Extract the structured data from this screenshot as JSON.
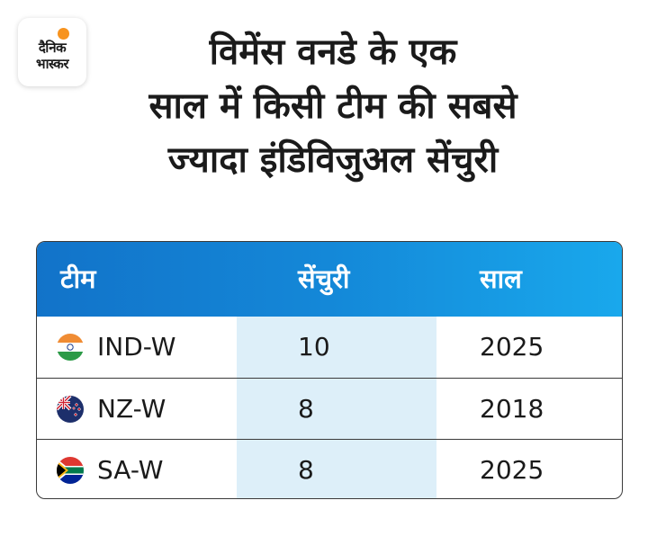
{
  "logo": {
    "line1": "दैनिक",
    "line2": "भास्कर"
  },
  "title": {
    "line1": "विमेंस वनडे के एक",
    "line2": "साल में किसी टीम की सबसे",
    "line3": "ज्यादा इंडिविजुअल सेंचुरी"
  },
  "table": {
    "headers": {
      "team": "टीम",
      "centuries": "सेंचुरी",
      "year": "साल"
    },
    "rows": [
      {
        "team": "IND-W",
        "centuries": "10",
        "year": "2025",
        "flag_icon": "india-flag-icon"
      },
      {
        "team": "NZ-W",
        "centuries": "8",
        "year": "2018",
        "flag_icon": "new-zealand-flag-icon"
      },
      {
        "team": "SA-W",
        "centuries": "8",
        "year": "2025",
        "flag_icon": "south-africa-flag-icon"
      }
    ]
  },
  "colors": {
    "header_start": "#1273c9",
    "header_end": "#19a8ec",
    "highlight_column": "#ddeff9",
    "logo_sun": "#f7931e"
  }
}
